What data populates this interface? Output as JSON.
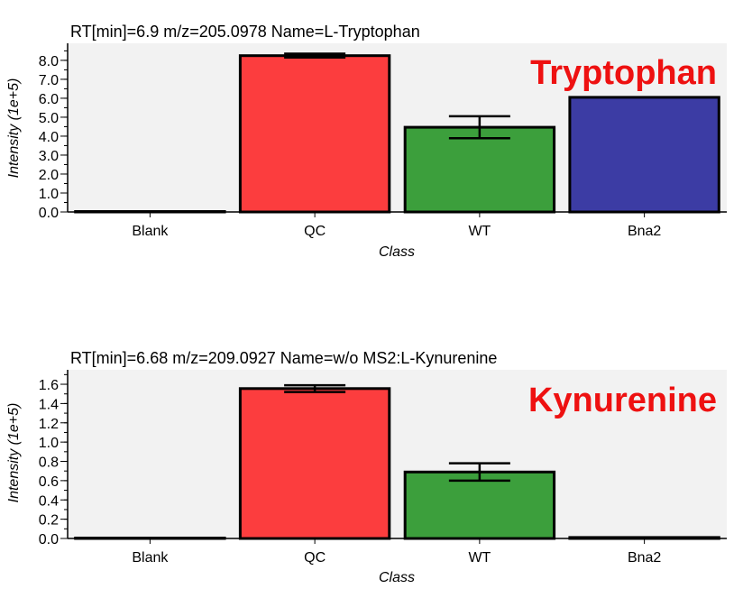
{
  "chart_data": [
    {
      "type": "bar",
      "title": "RT[min]=6.9 m/z=205.0978 Name=L-Tryptophan",
      "annotation": "Tryptophan",
      "xlabel": "Class",
      "ylabel": "Intensity (1e+5)",
      "categories": [
        "Blank",
        "QC",
        "WT",
        "Bna2"
      ],
      "values": [
        0.0,
        8.25,
        4.47,
        6.05
      ],
      "errors": [
        0.0,
        0.1,
        0.58,
        0.0
      ],
      "bar_colors": [
        "#ffffff",
        "#fc3d3e",
        "#3c9f3c",
        "#3c3ca4"
      ],
      "ylim": [
        0,
        8.9
      ],
      "yticks": [
        "0.0",
        "1.0",
        "2.0",
        "3.0",
        "4.0",
        "5.0",
        "6.0",
        "7.0",
        "8.0"
      ],
      "ytick_values": [
        0,
        1,
        2,
        3,
        4,
        5,
        6,
        7,
        8
      ],
      "yminor_step": 0.5,
      "grid": false
    },
    {
      "type": "bar",
      "title": "RT[min]=6.68 m/z=209.0927 Name=w/o MS2:L-Kynurenine",
      "annotation": "Kynurenine",
      "xlabel": "Class",
      "ylabel": "Intensity (1e+5)",
      "categories": [
        "Blank",
        "QC",
        "WT",
        "Bna2"
      ],
      "values": [
        0.0,
        1.555,
        0.69,
        0.01
      ],
      "errors": [
        0.0,
        0.035,
        0.09,
        0.0
      ],
      "bar_colors": [
        "#ffffff",
        "#fc3d3e",
        "#3c9f3c",
        "#3c3ca4"
      ],
      "ylim": [
        0,
        1.75
      ],
      "yticks": [
        "0.0",
        "0.2",
        "0.4",
        "0.6",
        "0.8",
        "1.0",
        "1.2",
        "1.4",
        "1.6"
      ],
      "ytick_values": [
        0,
        0.2,
        0.4,
        0.6,
        0.8,
        1.0,
        1.2,
        1.4,
        1.6
      ],
      "yminor_step": 0.1,
      "grid": false
    }
  ],
  "colors": {
    "plot_background": "#f2f2f2",
    "annotation": "#ee1111",
    "axis": "#000000"
  }
}
